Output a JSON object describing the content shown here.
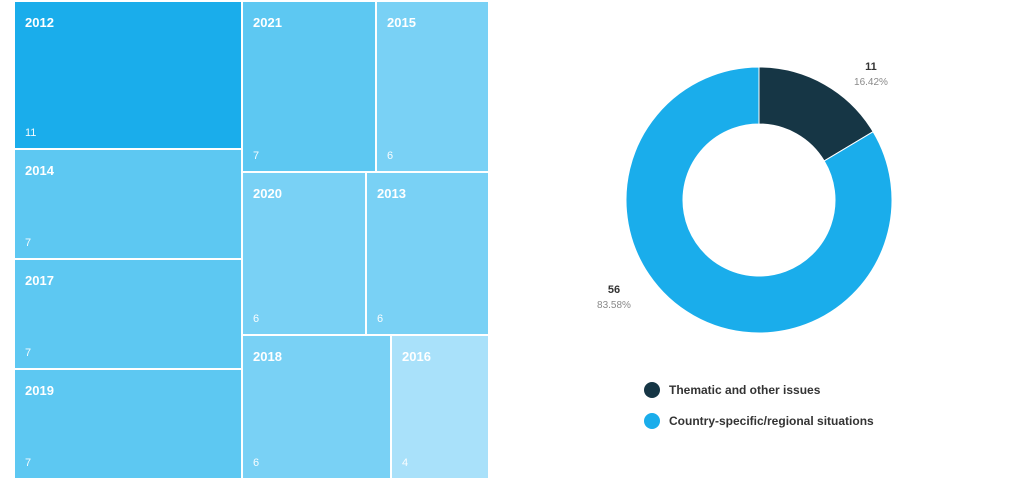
{
  "chart_data": [
    {
      "type": "treemap",
      "items": [
        {
          "label": "2012",
          "value": 11,
          "color": "#1aadeb"
        },
        {
          "label": "2021",
          "value": 7,
          "color": "#5dc8f2"
        },
        {
          "label": "2015",
          "value": 6,
          "color": "#79d1f5"
        },
        {
          "label": "2014",
          "value": 7,
          "color": "#5dc8f2"
        },
        {
          "label": "2020",
          "value": 6,
          "color": "#79d1f5"
        },
        {
          "label": "2013",
          "value": 6,
          "color": "#79d1f5"
        },
        {
          "label": "2017",
          "value": 7,
          "color": "#5dc8f2"
        },
        {
          "label": "2018",
          "value": 6,
          "color": "#79d1f5"
        },
        {
          "label": "2016",
          "value": 4,
          "color": "#a9e1fa"
        },
        {
          "label": "2019",
          "value": 7,
          "color": "#5dc8f2"
        }
      ]
    },
    {
      "type": "pie",
      "donut": true,
      "slices": [
        {
          "label": "Thematic and other issues",
          "value": 11,
          "percent": "16.42%",
          "color": "#163645"
        },
        {
          "label": "Country-specific/regional situations",
          "value": 56,
          "percent": "83.58%",
          "color": "#1aadeb"
        }
      ],
      "legend_position": "bottom"
    }
  ]
}
